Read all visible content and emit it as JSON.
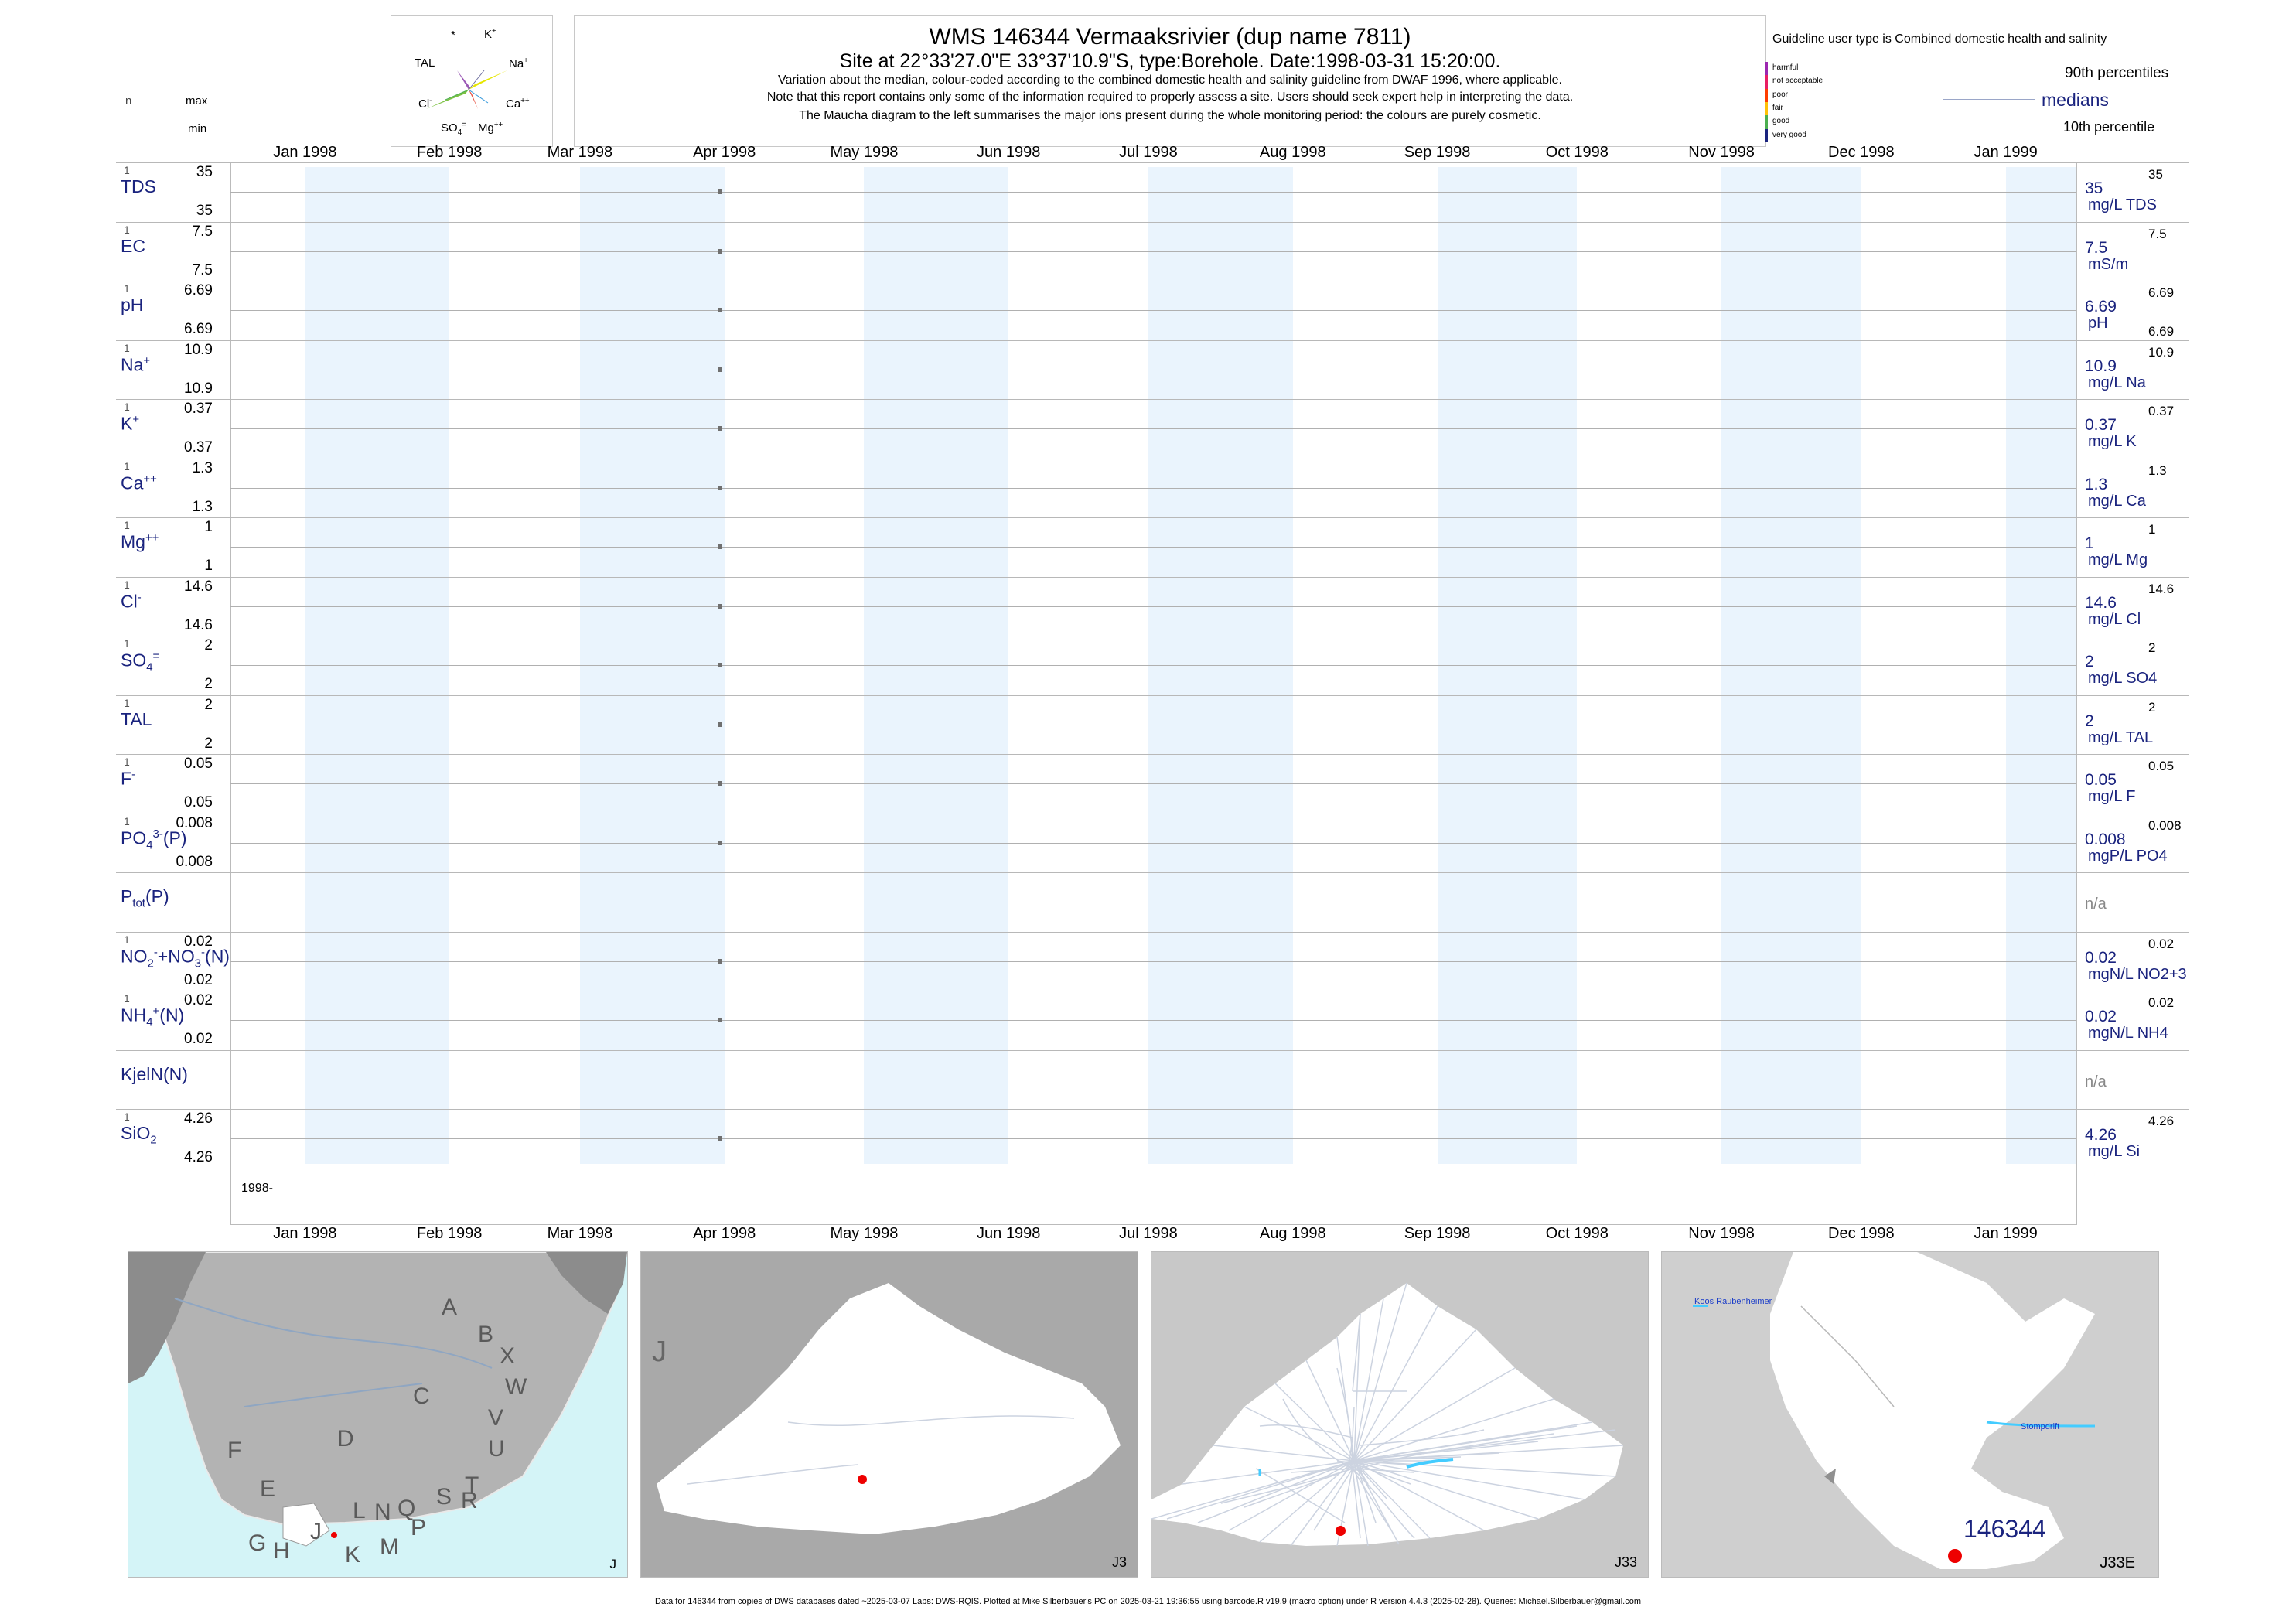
{
  "header": {
    "title": "WMS 146344  Vermaaksrivier (dup name 7811)",
    "subtitle": "Site at 22°33'27.0\"E 33°37'10.9\"S, type:Borehole. Date:1998-03-31 15:20:00.",
    "note1": "Variation about the median,  colour-coded according to the combined domestic health and salinity guideline from DWAF 1996, where applicable.",
    "note2": "Note that this report contains only some of the information required to properly assess a site. Users should seek expert help in interpreting the data.",
    "note3": "The Maucha diagram to the left summarises the major ions present during the whole monitoring period: the colours are purely cosmetic."
  },
  "maucha": {
    "labels": [
      "*",
      "K+",
      "TAL",
      "Na+",
      "Cl-",
      "Ca++",
      "SO4=",
      "Mg++"
    ]
  },
  "left_header": {
    "n": "n",
    "max": "max",
    "min": "min"
  },
  "guideline": {
    "text": "Guideline user type is Combined domestic health and salinity",
    "levels": [
      {
        "label": "harmful",
        "color": "#9c27b0"
      },
      {
        "label": "not acceptable",
        "color": "#e91e63"
      },
      {
        "label": "poor",
        "color": "#ff3d00"
      },
      {
        "label": "fair",
        "color": "#ffc107"
      },
      {
        "label": "good",
        "color": "#4caf50"
      },
      {
        "label": "very good",
        "color": "#1a237e"
      }
    ],
    "p90": "90th percentiles",
    "medians": "medians",
    "p10": "10th percentile"
  },
  "x_year_label": "1998-",
  "chart_data": {
    "type": "scatter",
    "x_ticks": [
      "Jan 1998",
      "Feb 1998",
      "Mar 1998",
      "Apr 1998",
      "May 1998",
      "Jun 1998",
      "Jul 1998",
      "Aug 1998",
      "Sep 1998",
      "Oct 1998",
      "Nov 1998",
      "Dec 1998",
      "Jan 1999"
    ],
    "sample_date": "1998-03-31",
    "panels": [
      {
        "label": "TDS",
        "n": "1",
        "max": "35",
        "min": "35",
        "median": "35",
        "p90": "35",
        "p10": "",
        "unit": "mg/L TDS",
        "value": 35
      },
      {
        "label": "EC",
        "n": "1",
        "max": "7.5",
        "min": "7.5",
        "median": "7.5",
        "p90": "7.5",
        "p10": "",
        "unit": "mS/m",
        "value": 7.5
      },
      {
        "label": "pH",
        "n": "1",
        "max": "6.69",
        "min": "6.69",
        "median": "6.69",
        "p90": "6.69",
        "p10": "6.69",
        "unit": "pH",
        "value": 6.69
      },
      {
        "label": "Na+",
        "n": "1",
        "max": "10.9",
        "min": "10.9",
        "median": "10.9",
        "p90": "10.9",
        "p10": "",
        "unit": "mg/L Na",
        "value": 10.9
      },
      {
        "label": "K+",
        "n": "1",
        "max": "0.37",
        "min": "0.37",
        "median": "0.37",
        "p90": "0.37",
        "p10": "",
        "unit": "mg/L K",
        "value": 0.37
      },
      {
        "label": "Ca++",
        "n": "1",
        "max": "1.3",
        "min": "1.3",
        "median": "1.3",
        "p90": "1.3",
        "p10": "",
        "unit": "mg/L Ca",
        "value": 1.3
      },
      {
        "label": "Mg++",
        "n": "1",
        "max": "1",
        "min": "1",
        "median": "1",
        "p90": "1",
        "p10": "",
        "unit": "mg/L Mg",
        "value": 1
      },
      {
        "label": "Cl-",
        "n": "1",
        "max": "14.6",
        "min": "14.6",
        "median": "14.6",
        "p90": "14.6",
        "p10": "",
        "unit": "mg/L Cl",
        "value": 14.6
      },
      {
        "label": "SO4=",
        "n": "1",
        "max": "2",
        "min": "2",
        "median": "2",
        "p90": "2",
        "p10": "",
        "unit": "mg/L SO4",
        "value": 2
      },
      {
        "label": "TAL",
        "n": "1",
        "max": "2",
        "min": "2",
        "median": "2",
        "p90": "2",
        "p10": "",
        "unit": "mg/L TAL",
        "value": 2
      },
      {
        "label": "F-",
        "n": "1",
        "max": "0.05",
        "min": "0.05",
        "median": "0.05",
        "p90": "0.05",
        "p10": "",
        "unit": "mg/L F",
        "value": 0.05
      },
      {
        "label": "PO43-(P)",
        "n": "1",
        "max": "0.008",
        "min": "0.008",
        "median": "0.008",
        "p90": "0.008",
        "p10": "",
        "unit": "mgP/L PO4",
        "value": 0.008
      },
      {
        "label": "Ptot(P)",
        "n": "",
        "max": "",
        "min": "",
        "median": "n/a",
        "p90": "",
        "p10": "",
        "unit": "",
        "value": null
      },
      {
        "label": "NO2-+NO3-(N)",
        "n": "1",
        "max": "0.02",
        "min": "0.02",
        "median": "0.02",
        "p90": "0.02",
        "p10": "",
        "unit": "mgN/L NO2+3",
        "value": 0.02
      },
      {
        "label": "NH4+(N)",
        "n": "1",
        "max": "0.02",
        "min": "0.02",
        "median": "0.02",
        "p90": "0.02",
        "p10": "",
        "unit": "mgN/L NH4",
        "value": 0.02
      },
      {
        "label": "KjelN(N)",
        "n": "",
        "max": "",
        "min": "",
        "median": "n/a",
        "p90": "",
        "p10": "",
        "unit": "",
        "value": null
      },
      {
        "label": "SiO2",
        "n": "1",
        "max": "4.26",
        "min": "4.26",
        "median": "4.26",
        "p90": "4.26",
        "p10": "",
        "unit": "mg/L Si",
        "value": 4.26
      }
    ]
  },
  "maps": [
    {
      "label": "J",
      "letters": [
        "A",
        "B",
        "X",
        "C",
        "W",
        "D",
        "V",
        "U",
        "F",
        "T",
        "E",
        "S",
        "R",
        "L",
        "N",
        "Q",
        "J",
        "P",
        "G",
        "H",
        "K",
        "M"
      ]
    },
    {
      "label": "J3",
      "corner": "J"
    },
    {
      "label": "J33"
    },
    {
      "label": "J33E",
      "site": "146344",
      "place1": "Koos Raubenheimer",
      "place2": "Stompdrift"
    }
  ],
  "footer": "Data for 146344 from copies of DWS databases dated ~2025-03-07 Labs: DWS-RQIS. Plotted at Mike Silberbauer's PC on 2025-03-21 19:36:55 using barcode.R v19.9 (macro option) under R version 4.4.3 (2025-02-28). Queries: Michael.Silberbauer@gmail.com"
}
